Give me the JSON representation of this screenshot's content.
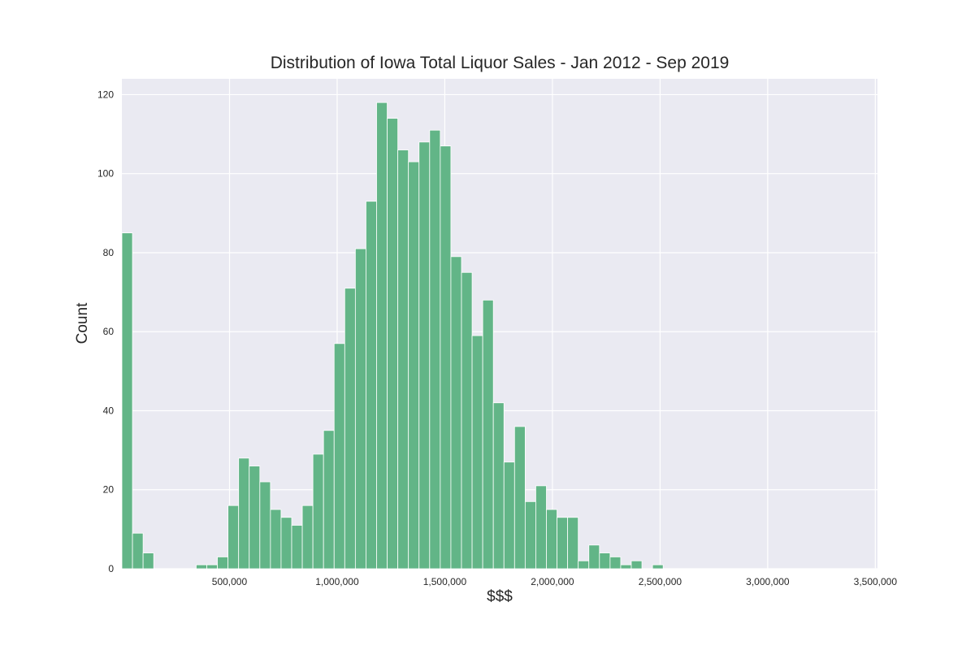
{
  "chart_data": {
    "type": "bar",
    "title": "Distribution of Iowa Total Liquor Sales - Jan 2012 - Sep 2019",
    "xlabel": "$$$",
    "ylabel": "Count",
    "xlim": [
      0,
      3510000
    ],
    "ylim": [
      0,
      124
    ],
    "x_ticks": [
      500000,
      1000000,
      1500000,
      2000000,
      2500000,
      3000000,
      3500000
    ],
    "x_tick_labels": [
      "500,000",
      "1,000,000",
      "1,500,000",
      "2,000,000",
      "2,500,000",
      "3,000,000",
      "3,500,000"
    ],
    "y_ticks": [
      0,
      20,
      40,
      60,
      80,
      100,
      120
    ],
    "y_tick_labels": [
      "0",
      "20",
      "40",
      "60",
      "80",
      "100",
      "120"
    ],
    "grid": true,
    "bar_color": "#62b587",
    "background_color": "#eaeaf2",
    "bin_width": 49300,
    "bin_edges_start": 0,
    "bin_counts": [
      85,
      9,
      4,
      0,
      0,
      0,
      0,
      1,
      1,
      3,
      16,
      28,
      26,
      22,
      15,
      13,
      11,
      16,
      29,
      35,
      57,
      71,
      81,
      93,
      118,
      114,
      106,
      103,
      108,
      111,
      107,
      79,
      75,
      59,
      68,
      42,
      27,
      36,
      17,
      21,
      15,
      13,
      13,
      2,
      6,
      4,
      3,
      1,
      2,
      0,
      1,
      0,
      0,
      0,
      0,
      0,
      0,
      0,
      0,
      0,
      0,
      0,
      0,
      0,
      0,
      0,
      0,
      0,
      0,
      0,
      0,
      0,
      0,
      0,
      0,
      0,
      0,
      0,
      0,
      0,
      0,
      0,
      0,
      0,
      0,
      0,
      0,
      0,
      0,
      0,
      0,
      0,
      0,
      0,
      0,
      0,
      0,
      0,
      0,
      0,
      0,
      0,
      0,
      0,
      0,
      0,
      0,
      0,
      0,
      0,
      0,
      0,
      0,
      0,
      0,
      0,
      0,
      0,
      0,
      0,
      0,
      0,
      0,
      0,
      0,
      0,
      0,
      0,
      0,
      0,
      0,
      0,
      0,
      0,
      0,
      0,
      0,
      0,
      0,
      0,
      0,
      0,
      0,
      0,
      0,
      0,
      0,
      0,
      0,
      0,
      0,
      0,
      0,
      0,
      0,
      0,
      0,
      0,
      0,
      0,
      0,
      0,
      0,
      0,
      0,
      0,
      0,
      0,
      0,
      0,
      0,
      0,
      0,
      0
    ]
  }
}
